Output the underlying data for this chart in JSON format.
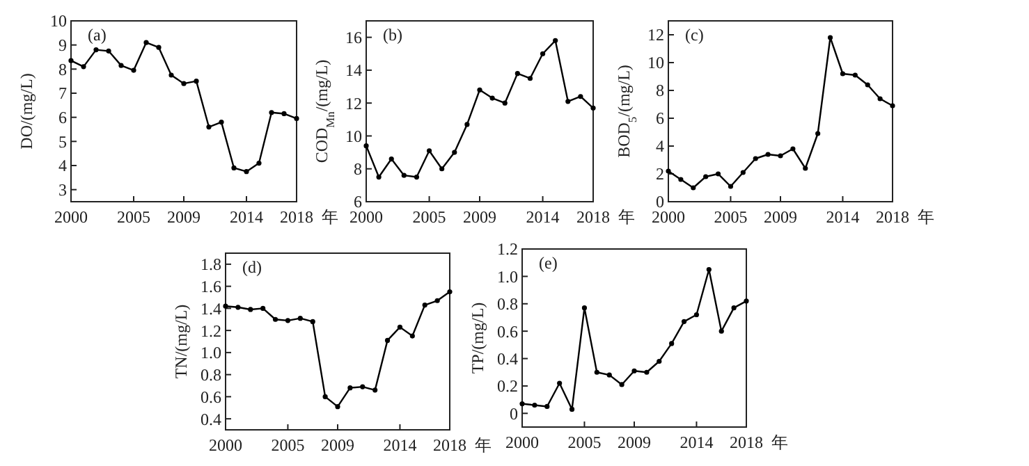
{
  "chart_data": [
    {
      "type": "line",
      "ylabel": "DO/(mg/L)",
      "xlabel": "年",
      "annotations": [
        "(a)"
      ],
      "marker": "circle",
      "color": "#000000",
      "xlim": [
        2000,
        2018
      ],
      "xticks": [
        2000,
        2005,
        2009,
        2014,
        2018
      ],
      "ylim": [
        2.5,
        10
      ],
      "yticks": [
        3,
        4,
        5,
        6,
        7,
        8,
        9,
        10
      ],
      "x": [
        2000,
        2001,
        2002,
        2003,
        2004,
        2005,
        2006,
        2007,
        2008,
        2009,
        2010,
        2011,
        2012,
        2013,
        2014,
        2015,
        2016,
        2017,
        2018
      ],
      "values": [
        8.35,
        8.1,
        8.8,
        8.75,
        8.15,
        7.95,
        9.1,
        8.9,
        7.75,
        7.4,
        7.5,
        5.6,
        5.8,
        3.9,
        3.75,
        4.1,
        6.2,
        6.15,
        5.95
      ]
    },
    {
      "type": "line",
      "ylabel": "COD$_{Mn}$/(mg/L)",
      "xlabel": "年",
      "annotations": [
        "(b)"
      ],
      "marker": "circle",
      "color": "#000000",
      "xlim": [
        2000,
        2018
      ],
      "xticks": [
        2000,
        2005,
        2009,
        2014,
        2018
      ],
      "ylim": [
        6,
        17
      ],
      "yticks": [
        6,
        8,
        10,
        12,
        14,
        16
      ],
      "x": [
        2000,
        2001,
        2002,
        2003,
        2004,
        2005,
        2006,
        2007,
        2008,
        2009,
        2010,
        2011,
        2012,
        2013,
        2014,
        2015,
        2016,
        2017,
        2018
      ],
      "values": [
        9.4,
        7.5,
        8.6,
        7.6,
        7.5,
        9.1,
        8.0,
        9.0,
        10.7,
        12.8,
        12.3,
        12.0,
        13.8,
        13.5,
        15.0,
        15.8,
        12.1,
        12.4,
        11.7
      ]
    },
    {
      "type": "line",
      "ylabel": "BOD$_{5}$/(mg/L)",
      "xlabel": "年",
      "annotations": [
        "(c)"
      ],
      "marker": "circle",
      "color": "#000000",
      "xlim": [
        2000,
        2018
      ],
      "xticks": [
        2000,
        2005,
        2009,
        2014,
        2018
      ],
      "ylim": [
        0,
        13
      ],
      "yticks": [
        0,
        2,
        4,
        6,
        8,
        10,
        12
      ],
      "x": [
        2000,
        2001,
        2002,
        2003,
        2004,
        2005,
        2006,
        2007,
        2008,
        2009,
        2010,
        2011,
        2012,
        2013,
        2014,
        2015,
        2016,
        2017,
        2018
      ],
      "values": [
        2.2,
        1.6,
        1.0,
        1.8,
        2.0,
        1.1,
        2.1,
        3.1,
        3.4,
        3.3,
        3.8,
        2.4,
        4.9,
        11.8,
        9.2,
        9.1,
        8.4,
        7.4,
        6.9
      ]
    },
    {
      "type": "line",
      "ylabel": "TN/(mg/L)",
      "xlabel": "年",
      "annotations": [
        "(d)"
      ],
      "marker": "circle",
      "color": "#000000",
      "xlim": [
        2000,
        2018
      ],
      "xticks": [
        2000,
        2005,
        2009,
        2014,
        2018
      ],
      "ylim": [
        0.3,
        1.9
      ],
      "yticks": [
        {
          "value": 0.4,
          "label": "0.4"
        },
        {
          "value": 0.6,
          "label": "0.6"
        },
        {
          "value": 0.8,
          "label": "0.8"
        },
        {
          "value": 1.0,
          "label": "1.0"
        },
        {
          "value": 1.2,
          "label": "1.2"
        },
        {
          "value": 1.4,
          "label": "1.4"
        },
        {
          "value": 1.6,
          "label": "1.6"
        },
        {
          "value": 1.8,
          "label": "1.8"
        }
      ],
      "x": [
        2000,
        2001,
        2002,
        2003,
        2004,
        2005,
        2006,
        2007,
        2008,
        2009,
        2010,
        2011,
        2012,
        2013,
        2014,
        2015,
        2016,
        2017,
        2018
      ],
      "values": [
        1.42,
        1.41,
        1.39,
        1.4,
        1.3,
        1.29,
        1.31,
        1.28,
        0.6,
        0.51,
        0.68,
        0.69,
        0.66,
        1.11,
        1.23,
        1.15,
        1.43,
        1.47,
        1.55
      ]
    },
    {
      "type": "line",
      "ylabel": "TP/(mg/L)",
      "xlabel": "年",
      "annotations": [
        "(e)"
      ],
      "marker": "circle",
      "color": "#000000",
      "xlim": [
        2000,
        2018
      ],
      "xticks": [
        2000,
        2005,
        2009,
        2014,
        2018
      ],
      "ylim": [
        -0.1,
        1.2
      ],
      "yticks": [
        0,
        0.2,
        0.4,
        0.6,
        0.8,
        {
          "value": 1.0,
          "label": "1.0"
        },
        1.2
      ],
      "x": [
        2000,
        2001,
        2002,
        2003,
        2004,
        2005,
        2006,
        2007,
        2008,
        2009,
        2010,
        2011,
        2012,
        2013,
        2014,
        2015,
        2016,
        2017,
        2018
      ],
      "values": [
        0.07,
        0.06,
        0.05,
        0.22,
        0.03,
        0.77,
        0.3,
        0.28,
        0.21,
        0.31,
        0.3,
        0.38,
        0.51,
        0.67,
        0.72,
        1.05,
        0.6,
        0.77,
        0.82
      ]
    }
  ]
}
